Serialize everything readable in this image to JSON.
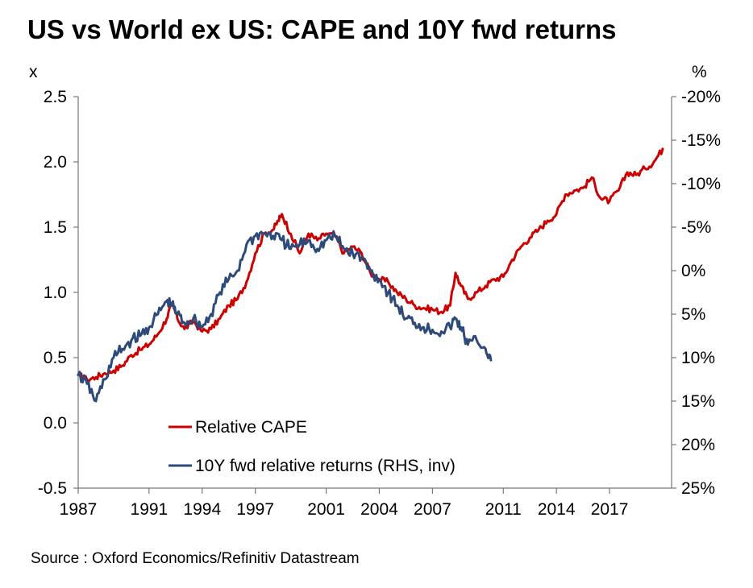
{
  "title": "US vs World ex US: CAPE and 10Y fwd returns",
  "source": "Source : Oxford Economics/Refinitiv Datastream",
  "colors": {
    "cape": "#cc0000",
    "returns": "#2e4a7a",
    "axis": "#777777"
  },
  "chart_data": {
    "type": "line",
    "title": "US vs World ex US: CAPE and 10Y fwd returns",
    "left_axis": {
      "unit_label": "x",
      "range": [
        -0.5,
        2.5
      ],
      "ticks": [
        -0.5,
        0.0,
        0.5,
        1.0,
        1.5,
        2.0,
        2.5
      ],
      "tick_labels": [
        "-0.5",
        "0.0",
        "0.5",
        "1.0",
        "1.5",
        "2.0",
        "2.5"
      ]
    },
    "right_axis": {
      "unit_label": "%",
      "inverted": true,
      "range": [
        25,
        -20
      ],
      "ticks": [
        25,
        20,
        15,
        10,
        5,
        0,
        -5,
        -10,
        -15,
        -20
      ],
      "tick_labels": [
        "25%",
        "20%",
        "15%",
        "10%",
        "5%",
        "0%",
        "-5%",
        "-10%",
        "-15%",
        "-20%"
      ]
    },
    "x_axis": {
      "range": [
        1987,
        2020.5
      ],
      "tick_labels": [
        "1987",
        "1991",
        "1994",
        "1997",
        "2001",
        "2004",
        "2007",
        "2011",
        "2014",
        "2017"
      ]
    },
    "legend": {
      "position": "bottom-left"
    },
    "series": [
      {
        "name": "Relative CAPE",
        "axis": "left",
        "color": "#cc0000",
        "points": [
          [
            1987.0,
            0.37
          ],
          [
            1987.5,
            0.33
          ],
          [
            1988.0,
            0.35
          ],
          [
            1988.5,
            0.38
          ],
          [
            1989.0,
            0.4
          ],
          [
            1989.5,
            0.44
          ],
          [
            1990.0,
            0.52
          ],
          [
            1990.5,
            0.56
          ],
          [
            1991.0,
            0.6
          ],
          [
            1991.5,
            0.68
          ],
          [
            1992.0,
            0.8
          ],
          [
            1992.3,
            0.92
          ],
          [
            1992.6,
            0.8
          ],
          [
            1993.0,
            0.72
          ],
          [
            1993.5,
            0.78
          ],
          [
            1994.0,
            0.7
          ],
          [
            1994.5,
            0.72
          ],
          [
            1995.0,
            0.8
          ],
          [
            1995.5,
            0.9
          ],
          [
            1996.0,
            0.95
          ],
          [
            1996.5,
            1.08
          ],
          [
            1997.0,
            1.3
          ],
          [
            1997.5,
            1.45
          ],
          [
            1998.0,
            1.48
          ],
          [
            1998.3,
            1.55
          ],
          [
            1998.5,
            1.6
          ],
          [
            1999.0,
            1.45
          ],
          [
            1999.5,
            1.3
          ],
          [
            2000.0,
            1.45
          ],
          [
            2000.5,
            1.4
          ],
          [
            2001.0,
            1.45
          ],
          [
            2001.5,
            1.43
          ],
          [
            2002.0,
            1.3
          ],
          [
            2002.5,
            1.35
          ],
          [
            2003.0,
            1.3
          ],
          [
            2003.5,
            1.15
          ],
          [
            2004.0,
            1.1
          ],
          [
            2004.5,
            1.08
          ],
          [
            2005.0,
            1.0
          ],
          [
            2005.5,
            0.95
          ],
          [
            2006.0,
            0.9
          ],
          [
            2006.5,
            0.88
          ],
          [
            2007.0,
            0.87
          ],
          [
            2007.5,
            0.85
          ],
          [
            2008.0,
            0.9
          ],
          [
            2008.3,
            1.15
          ],
          [
            2008.6,
            1.05
          ],
          [
            2009.0,
            0.95
          ],
          [
            2009.5,
            1.0
          ],
          [
            2010.0,
            1.05
          ],
          [
            2010.5,
            1.1
          ],
          [
            2011.0,
            1.12
          ],
          [
            2011.5,
            1.25
          ],
          [
            2012.0,
            1.35
          ],
          [
            2012.5,
            1.42
          ],
          [
            2013.0,
            1.48
          ],
          [
            2013.5,
            1.55
          ],
          [
            2014.0,
            1.6
          ],
          [
            2014.5,
            1.75
          ],
          [
            2015.0,
            1.78
          ],
          [
            2015.5,
            1.8
          ],
          [
            2016.0,
            1.88
          ],
          [
            2016.5,
            1.72
          ],
          [
            2017.0,
            1.7
          ],
          [
            2017.5,
            1.78
          ],
          [
            2018.0,
            1.92
          ],
          [
            2018.5,
            1.9
          ],
          [
            2019.0,
            1.95
          ],
          [
            2019.5,
            2.0
          ],
          [
            2020.0,
            2.1
          ]
        ]
      },
      {
        "name": "10Y fwd relative returns (RHS, inv)",
        "axis": "right",
        "color": "#2e4a7a",
        "points": [
          [
            1987.0,
            12.0
          ],
          [
            1987.5,
            13.0
          ],
          [
            1988.0,
            15.0
          ],
          [
            1988.5,
            12.5
          ],
          [
            1989.0,
            10.0
          ],
          [
            1989.5,
            9.0
          ],
          [
            1990.0,
            8.0
          ],
          [
            1990.5,
            7.5
          ],
          [
            1991.0,
            6.5
          ],
          [
            1991.5,
            5.0
          ],
          [
            1992.0,
            3.5
          ],
          [
            1992.3,
            4.0
          ],
          [
            1992.6,
            5.0
          ],
          [
            1993.0,
            6.0
          ],
          [
            1993.5,
            5.5
          ],
          [
            1994.0,
            6.5
          ],
          [
            1994.5,
            5.0
          ],
          [
            1995.0,
            2.5
          ],
          [
            1995.5,
            1.0
          ],
          [
            1996.0,
            0.0
          ],
          [
            1996.5,
            -3.0
          ],
          [
            1997.0,
            -4.0
          ],
          [
            1997.5,
            -4.3
          ],
          [
            1998.0,
            -4.0
          ],
          [
            1998.5,
            -3.5
          ],
          [
            1999.0,
            -2.5
          ],
          [
            1999.5,
            -3.0
          ],
          [
            2000.0,
            -3.5
          ],
          [
            2000.5,
            -2.5
          ],
          [
            2001.0,
            -3.5
          ],
          [
            2001.5,
            -4.0
          ],
          [
            2002.0,
            -2.5
          ],
          [
            2002.5,
            -2.0
          ],
          [
            2003.0,
            -1.5
          ],
          [
            2003.5,
            0.0
          ],
          [
            2004.0,
            1.0
          ],
          [
            2004.5,
            2.5
          ],
          [
            2005.0,
            4.0
          ],
          [
            2005.5,
            5.5
          ],
          [
            2006.0,
            6.0
          ],
          [
            2006.5,
            6.5
          ],
          [
            2007.0,
            6.8
          ],
          [
            2007.5,
            7.0
          ],
          [
            2008.0,
            6.5
          ],
          [
            2008.3,
            5.5
          ],
          [
            2008.6,
            6.5
          ],
          [
            2009.0,
            8.5
          ],
          [
            2009.5,
            8.0
          ],
          [
            2010.0,
            9.0
          ],
          [
            2010.3,
            10.3
          ]
        ]
      }
    ]
  }
}
